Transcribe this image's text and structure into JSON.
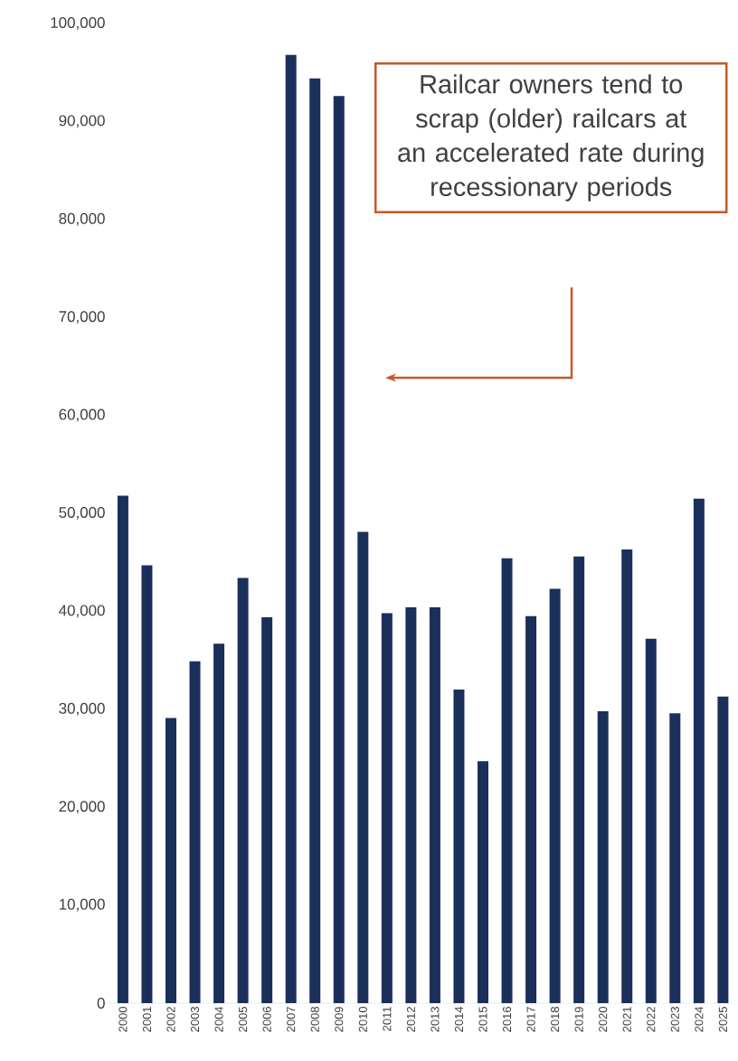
{
  "chart_data": {
    "type": "bar",
    "categories": [
      "2000",
      "2001",
      "2002",
      "2003",
      "2004",
      "2005",
      "2006",
      "2007",
      "2008",
      "2009",
      "2010",
      "2011",
      "2012",
      "2013",
      "2014",
      "2015",
      "2016",
      "2017",
      "2018",
      "2019",
      "2020",
      "2021",
      "2022",
      "2023",
      "2024",
      "2025"
    ],
    "values": [
      51800,
      44700,
      29100,
      34900,
      36700,
      43400,
      39400,
      96800,
      94400,
      92600,
      48100,
      39800,
      40400,
      40400,
      32000,
      24700,
      45400,
      39500,
      42300,
      45600,
      29800,
      46300,
      37200,
      29600,
      51500,
      31300
    ],
    "color": "#1b2f5b",
    "ylim": [
      0,
      100000
    ],
    "yticks": [
      {
        "value": 0,
        "label": "0"
      },
      {
        "value": 10000,
        "label": "10,000"
      },
      {
        "value": 20000,
        "label": "20,000"
      },
      {
        "value": 30000,
        "label": "30,000"
      },
      {
        "value": 40000,
        "label": "40,000"
      },
      {
        "value": 50000,
        "label": "50,000"
      },
      {
        "value": 60000,
        "label": "60,000"
      },
      {
        "value": 70000,
        "label": "70,000"
      },
      {
        "value": 80000,
        "label": "80,000"
      },
      {
        "value": 90000,
        "label": "90,000"
      },
      {
        "value": 100000,
        "label": "100,000"
      }
    ],
    "annotations": [
      "Railcar owners tend to scrap (older) railcars at an accelerated rate during recessionary periods"
    ]
  }
}
